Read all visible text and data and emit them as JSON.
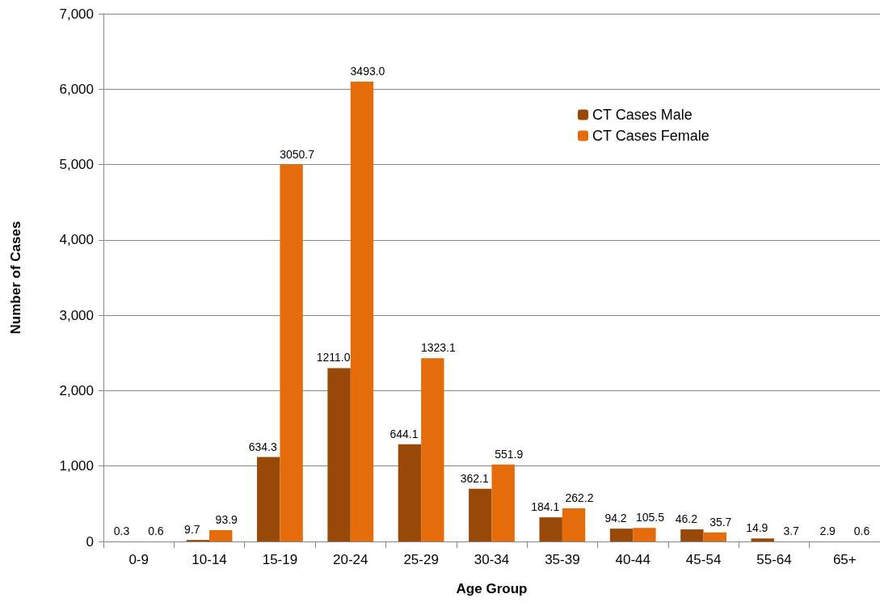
{
  "chart_data": {
    "type": "bar",
    "xlabel": "Age Group",
    "ylabel": "Number of Cases",
    "categories": [
      "0-9",
      "10-14",
      "15-19",
      "20-24",
      "25-29",
      "30-34",
      "35-39",
      "40-44",
      "45-54",
      "55-64",
      "65+"
    ],
    "series": [
      {
        "name": "CT Cases Male",
        "color": "#984807",
        "values": [
          0,
          20,
          1120,
          2300,
          1290,
          700,
          320,
          170,
          160,
          40,
          0
        ]
      },
      {
        "name": "CT Cases Female",
        "color": "#e46c0a",
        "values": [
          0,
          150,
          5000,
          6100,
          2430,
          1020,
          440,
          180,
          120,
          0,
          0
        ]
      }
    ],
    "annotations": [
      {
        "text": "0.3",
        "x": "0-9",
        "y": 0
      },
      {
        "text": "0.6",
        "x": "0-9",
        "y": 0
      },
      {
        "text": "9.7",
        "x": "10-14",
        "y": 20
      },
      {
        "text": "93.9",
        "x": "10-14",
        "y": 150
      },
      {
        "text": "634.3",
        "x": "15-19",
        "y": 1120
      },
      {
        "text": "3050.7",
        "x": "15-19",
        "y": 5000
      },
      {
        "text": "1211.0",
        "x": "20-24",
        "y": 2300
      },
      {
        "text": "3493.0",
        "x": "20-24",
        "y": 6100
      },
      {
        "text": "644.1",
        "x": "25-29",
        "y": 1290
      },
      {
        "text": "1323.1",
        "x": "25-29",
        "y": 2430
      },
      {
        "text": "362.1",
        "x": "30-34",
        "y": 700
      },
      {
        "text": "551.9",
        "x": "30-34",
        "y": 1020
      },
      {
        "text": "184.1",
        "x": "35-39",
        "y": 320
      },
      {
        "text": "262.2",
        "x": "35-39",
        "y": 440
      },
      {
        "text": "94.2",
        "x": "40-44",
        "y": 170
      },
      {
        "text": "105.5",
        "x": "40-44",
        "y": 180
      },
      {
        "text": "46.2",
        "x": "45-54",
        "y": 160
      },
      {
        "text": "35.7",
        "x": "45-54",
        "y": 120
      },
      {
        "text": "14.9",
        "x": "55-64",
        "y": 40
      },
      {
        "text": "3.7",
        "x": "55-64",
        "y": 0
      },
      {
        "text": "2.9",
        "x": "65+",
        "y": 0
      },
      {
        "text": "0.6",
        "x": "65+",
        "y": 0
      }
    ],
    "ylim": [
      0,
      7000
    ],
    "yticks": [
      {
        "value": 0,
        "label": "0"
      },
      {
        "value": 1000,
        "label": "1,000"
      },
      {
        "value": 2000,
        "label": "2,000"
      },
      {
        "value": 3000,
        "label": "3,000"
      },
      {
        "value": 4000,
        "label": "4,000"
      },
      {
        "value": 5000,
        "label": "5,000"
      },
      {
        "value": 6000,
        "label": "6,000"
      },
      {
        "value": 7000,
        "label": "7,000"
      }
    ],
    "grid": "y",
    "legend": "top right"
  }
}
